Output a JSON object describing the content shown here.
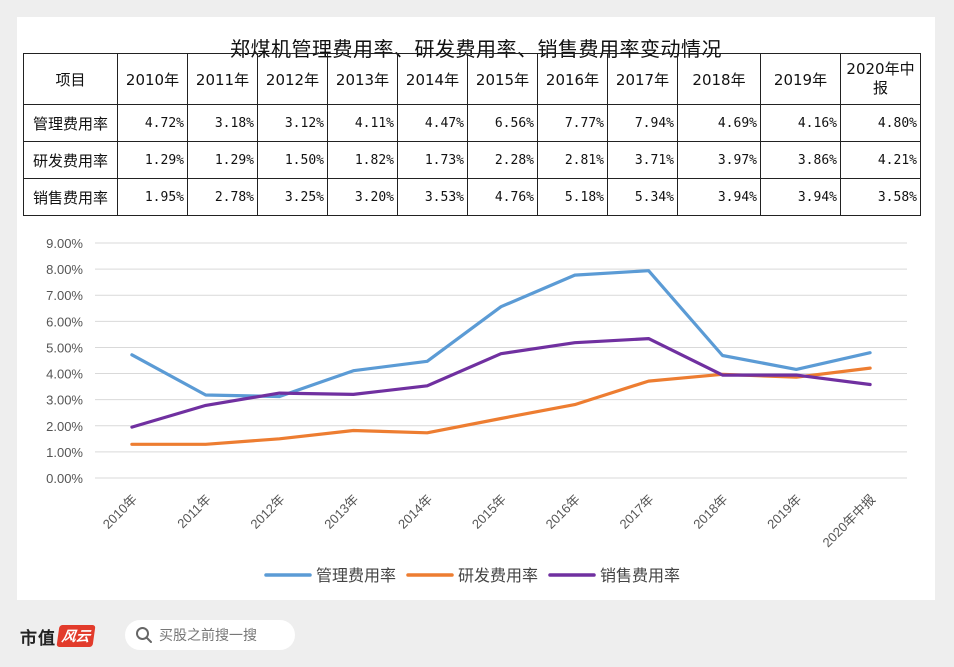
{
  "chart_data": {
    "type": "line",
    "title": "郑煤机管理费用率、研发费用率、销售费用率变动情况",
    "categories": [
      "2010年",
      "2011年",
      "2012年",
      "2013年",
      "2014年",
      "2015年",
      "2016年",
      "2017年",
      "2018年",
      "2019年",
      "2020年中报"
    ],
    "series": [
      {
        "name": "管理费用率",
        "color": "#5b9bd5",
        "values": [
          4.72,
          3.18,
          3.12,
          4.11,
          4.47,
          6.56,
          7.77,
          7.94,
          4.69,
          4.16,
          4.8
        ]
      },
      {
        "name": "研发费用率",
        "color": "#ed7d31",
        "values": [
          1.29,
          1.29,
          1.5,
          1.82,
          1.73,
          2.28,
          2.81,
          3.71,
          3.97,
          3.86,
          4.21
        ]
      },
      {
        "name": "销售费用率",
        "color": "#7030a0",
        "values": [
          1.95,
          2.78,
          3.25,
          3.2,
          3.53,
          4.76,
          5.18,
          5.34,
          3.94,
          3.94,
          3.58
        ]
      }
    ],
    "ylim": [
      0,
      9
    ],
    "ytick_step": 1,
    "ytick_labels": [
      "0.00%",
      "1.00%",
      "2.00%",
      "3.00%",
      "4.00%",
      "5.00%",
      "6.00%",
      "7.00%",
      "8.00%",
      "9.00%"
    ],
    "grid": true,
    "legend_position": "bottom"
  },
  "table": {
    "header_label": "项目",
    "columns": [
      "2010年",
      "2011年",
      "2012年",
      "2013年",
      "2014年",
      "2015年",
      "2016年",
      "2017年",
      "2018年",
      "2019年",
      "2020年中报"
    ],
    "rows": [
      {
        "label": "管理费用率",
        "cells": [
          "4.72%",
          "3.18%",
          "3.12%",
          "4.11%",
          "4.47%",
          "6.56%",
          "7.77%",
          "7.94%",
          "4.69%",
          "4.16%",
          "4.80%"
        ]
      },
      {
        "label": "研发费用率",
        "cells": [
          "1.29%",
          "1.29%",
          "1.50%",
          "1.82%",
          "1.73%",
          "2.28%",
          "2.81%",
          "3.71%",
          "3.97%",
          "3.86%",
          "4.21%"
        ]
      },
      {
        "label": "销售费用率",
        "cells": [
          "1.95%",
          "2.78%",
          "3.25%",
          "3.20%",
          "3.53%",
          "4.76%",
          "5.18%",
          "5.34%",
          "3.94%",
          "3.94%",
          "3.58%"
        ]
      }
    ]
  },
  "footer": {
    "brand_text": "市值",
    "brand_mark": "风云",
    "search_placeholder": "买股之前搜一搜",
    "search_icon": "search-icon"
  }
}
